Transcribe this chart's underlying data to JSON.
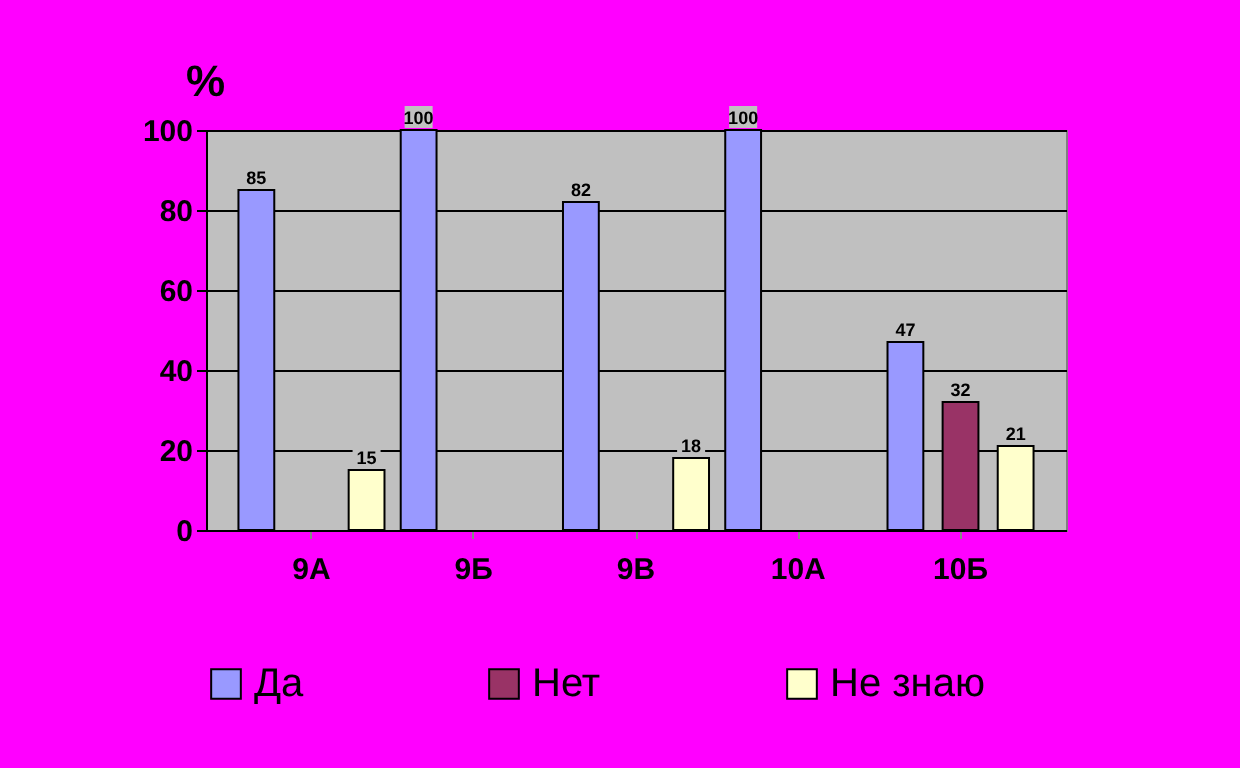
{
  "chart_data": {
    "type": "bar",
    "ylabel": "%",
    "categories": [
      "9А",
      "9Б",
      "9В",
      "10А",
      "10Б"
    ],
    "series": [
      {
        "name": "Да",
        "color": "#9999ff",
        "values": [
          85,
          100,
          82,
          100,
          47
        ]
      },
      {
        "name": "Нет",
        "color": "#993366",
        "values": [
          null,
          null,
          null,
          null,
          32
        ]
      },
      {
        "name": "Не знаю",
        "color": "#ffffcc",
        "values": [
          15,
          null,
          18,
          null,
          21
        ]
      }
    ],
    "ylim": [
      0,
      100
    ],
    "yticks": [
      0,
      20,
      40,
      60,
      80,
      100
    ],
    "grid": "y",
    "legend": "bottom",
    "data_labels": true
  }
}
